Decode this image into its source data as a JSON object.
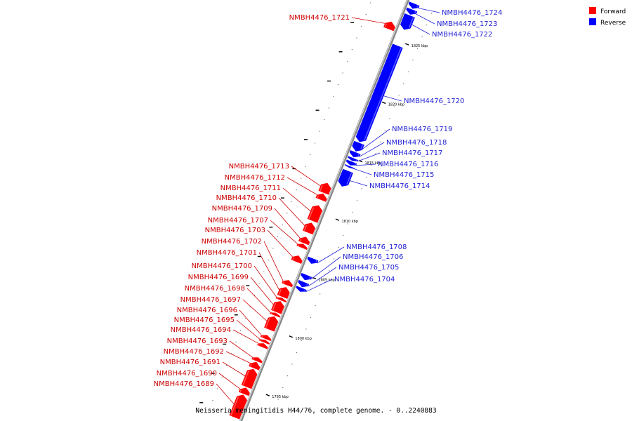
{
  "genome_title": "Neisseria meningitidis H44/76, complete genome. - 0..2240883",
  "legend": [
    {
      "label": "Forward",
      "color": "#ff0000"
    },
    {
      "label": "Reverse",
      "color": "#0000ff"
    }
  ],
  "colors": {
    "forward": "#ff0000",
    "reverse": "#0000ff",
    "label_forward": "#cc0000",
    "label_reverse": "#1f1fd6",
    "backbone": "#888888"
  },
  "position_ticks": [
    {
      "kbp": 1825,
      "label": "1825 kbp"
    },
    {
      "kbp": 1820,
      "label": "1820 kbp"
    },
    {
      "kbp": 1815,
      "label": "1815 kbp"
    },
    {
      "kbp": 1810,
      "label": "1810 kbp"
    },
    {
      "kbp": 1805,
      "label": "1805 kbp"
    },
    {
      "kbp": 1800,
      "label": "1800 kbp"
    },
    {
      "kbp": 1795,
      "label": "1795 kbp"
    }
  ],
  "genes": [
    {
      "name": "NMBH4476_1724",
      "strand": "reverse",
      "start_kbp": 1827.8,
      "end_kbp": 1828.2
    },
    {
      "name": "NMBH4476_1723",
      "strand": "reverse",
      "start_kbp": 1827.3,
      "end_kbp": 1827.7
    },
    {
      "name": "NMBH4476_1722",
      "strand": "reverse",
      "start_kbp": 1826.0,
      "end_kbp": 1827.2
    },
    {
      "name": "NMBH4476_1721",
      "strand": "forward",
      "start_kbp": 1825.6,
      "end_kbp": 1826.2
    },
    {
      "name": "NMBH4476_1720",
      "strand": "reverse",
      "start_kbp": 1816.4,
      "end_kbp": 1824.6
    },
    {
      "name": "NMBH4476_1719",
      "strand": "reverse",
      "start_kbp": 1815.6,
      "end_kbp": 1816.3
    },
    {
      "name": "NMBH4476_1718",
      "strand": "reverse",
      "start_kbp": 1815.1,
      "end_kbp": 1815.5
    },
    {
      "name": "NMBH4476_1717",
      "strand": "reverse",
      "start_kbp": 1814.8,
      "end_kbp": 1815.0
    },
    {
      "name": "NMBH4476_1716",
      "strand": "reverse",
      "start_kbp": 1814.4,
      "end_kbp": 1814.7
    },
    {
      "name": "NMBH4476_1715",
      "strand": "reverse",
      "start_kbp": 1814.2,
      "end_kbp": 1814.3
    },
    {
      "name": "NMBH4476_1714",
      "strand": "reverse",
      "start_kbp": 1812.6,
      "end_kbp": 1813.9
    },
    {
      "name": "NMBH4476_1713",
      "strand": "forward",
      "start_kbp": 1811.6,
      "end_kbp": 1812.4
    },
    {
      "name": "NMBH4476_1712",
      "strand": "forward",
      "start_kbp": 1811.0,
      "end_kbp": 1811.5
    },
    {
      "name": "NMBH4476_1711",
      "strand": "forward",
      "start_kbp": 1809.2,
      "end_kbp": 1810.5
    },
    {
      "name": "NMBH4476_1710",
      "strand": "forward",
      "start_kbp": 1808.2,
      "end_kbp": 1809.0
    },
    {
      "name": "NMBH4476_1709",
      "strand": "forward",
      "start_kbp": 1807.3,
      "end_kbp": 1807.8
    },
    {
      "name": "NMBH4476_1707",
      "strand": "forward",
      "start_kbp": 1806.9,
      "end_kbp": 1807.2
    },
    {
      "name": "NMBH4476_1708",
      "strand": "reverse",
      "start_kbp": 1806.0,
      "end_kbp": 1806.4
    },
    {
      "name": "NMBH4476_1703",
      "strand": "forward",
      "start_kbp": 1805.7,
      "end_kbp": 1806.2
    },
    {
      "name": "NMBH4476_1706",
      "strand": "reverse",
      "start_kbp": 1804.6,
      "end_kbp": 1805.0
    },
    {
      "name": "NMBH4476_1705",
      "strand": "reverse",
      "start_kbp": 1804.0,
      "end_kbp": 1804.4
    },
    {
      "name": "NMBH4476_1704",
      "strand": "reverse",
      "start_kbp": 1803.6,
      "end_kbp": 1803.9
    },
    {
      "name": "NMBH4476_1702",
      "strand": "forward",
      "start_kbp": 1803.7,
      "end_kbp": 1804.1
    },
    {
      "name": "NMBH4476_1701",
      "strand": "forward",
      "start_kbp": 1802.7,
      "end_kbp": 1803.5
    },
    {
      "name": "NMBH4476_1700",
      "strand": "forward",
      "start_kbp": 1802.4,
      "end_kbp": 1802.6
    },
    {
      "name": "NMBH4476_1699",
      "strand": "forward",
      "start_kbp": 1801.4,
      "end_kbp": 1802.3
    },
    {
      "name": "NMBH4476_1698",
      "strand": "forward",
      "start_kbp": 1801.1,
      "end_kbp": 1801.3
    },
    {
      "name": "NMBH4476_1697",
      "strand": "forward",
      "start_kbp": 1799.9,
      "end_kbp": 1801.0
    },
    {
      "name": "NMBH4476_1696",
      "strand": "forward",
      "start_kbp": 1799.1,
      "end_kbp": 1799.4
    },
    {
      "name": "NMBH4476_1695",
      "strand": "forward",
      "start_kbp": 1798.8,
      "end_kbp": 1799.0
    },
    {
      "name": "NMBH4476_1694",
      "strand": "forward",
      "start_kbp": 1798.4,
      "end_kbp": 1798.7
    },
    {
      "name": "NMBH4476_1693",
      "strand": "forward",
      "start_kbp": 1797.2,
      "end_kbp": 1797.5
    },
    {
      "name": "NMBH4476_1692",
      "strand": "forward",
      "start_kbp": 1796.6,
      "end_kbp": 1797.1
    },
    {
      "name": "NMBH4476_1691",
      "strand": "forward",
      "start_kbp": 1795.0,
      "end_kbp": 1796.5
    },
    {
      "name": "NMBH4476_1690",
      "strand": "forward",
      "start_kbp": 1794.4,
      "end_kbp": 1794.9
    },
    {
      "name": "NMBH4476_1689",
      "strand": "forward",
      "start_kbp": 1792.4,
      "end_kbp": 1794.3
    }
  ],
  "labels_forward_order": [
    "NMBH4476_1721",
    "NMBH4476_1713",
    "NMBH4476_1712",
    "NMBH4476_1711",
    "NMBH4476_1710",
    "NMBH4476_1709",
    "NMBH4476_1707",
    "NMBH4476_1703",
    "NMBH4476_1702",
    "NMBH4476_1701",
    "NMBH4476_1700",
    "NMBH4476_1699",
    "NMBH4476_1698",
    "NMBH4476_1697",
    "NMBH4476_1696",
    "NMBH4476_1695",
    "NMBH4476_1694",
    "NMBH4476_1693",
    "NMBH4476_1692",
    "NMBH4476_1691",
    "NMBH4476_1690",
    "NMBH4476_1689"
  ],
  "labels_reverse_order": [
    "NMBH4476_1724",
    "NMBH4476_1723",
    "NMBH4476_1722",
    "NMBH4476_1720",
    "NMBH4476_1719",
    "NMBH4476_1718",
    "NMBH4476_1717",
    "NMBH4476_1716",
    "NMBH4476_1715",
    "NMBH4476_1714",
    "NMBH4476_1708",
    "NMBH4476_1706",
    "NMBH4476_1705",
    "NMBH4476_1704"
  ]
}
